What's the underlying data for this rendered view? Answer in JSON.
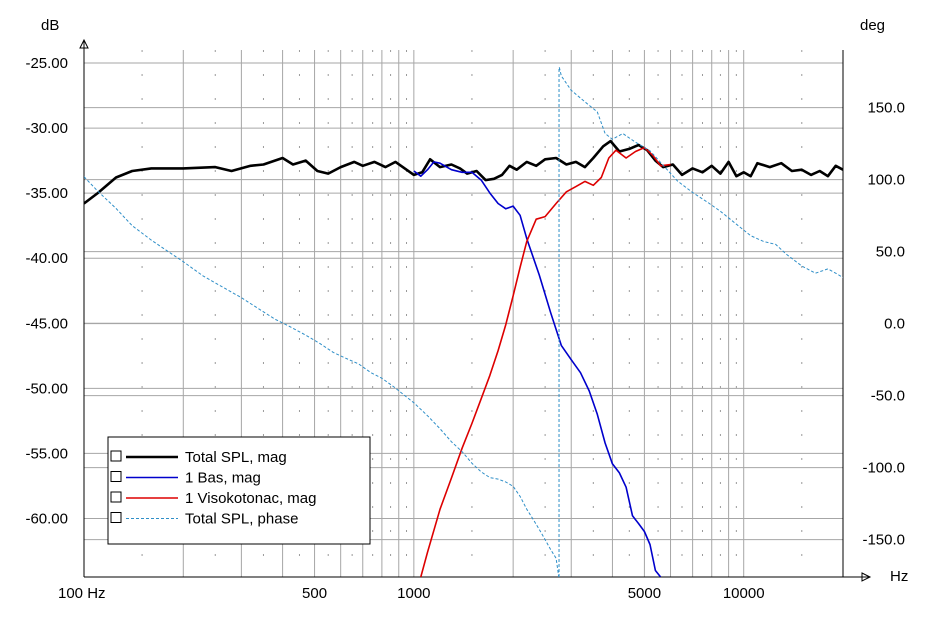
{
  "chart_data": {
    "type": "line",
    "title": "",
    "x_unit": "Hz",
    "y_left_unit": "dB",
    "y_right_unit": "deg",
    "x_scale": "log",
    "xlim": [
      100,
      20000
    ],
    "ylim_left": [
      -64.5,
      -24
    ],
    "ylim_right": [
      -176,
      190
    ],
    "x_ticks": [
      {
        "value": 100,
        "label": "100 Hz"
      },
      {
        "value": 500,
        "label": "500"
      },
      {
        "value": 1000,
        "label": "1000"
      },
      {
        "value": 5000,
        "label": "5000"
      },
      {
        "value": 10000,
        "label": "10000"
      }
    ],
    "y_left_ticks": [
      {
        "value": -25,
        "label": "-25.00"
      },
      {
        "value": -30,
        "label": "-30.00"
      },
      {
        "value": -35,
        "label": "-35.00"
      },
      {
        "value": -40,
        "label": "-40.00"
      },
      {
        "value": -45,
        "label": "-45.00"
      },
      {
        "value": -50,
        "label": "-50.00"
      },
      {
        "value": -55,
        "label": "-55.00"
      },
      {
        "value": -60,
        "label": "-60.00"
      }
    ],
    "y_right_ticks": [
      {
        "value": 150,
        "label": "150.0"
      },
      {
        "value": 100,
        "label": "100.0"
      },
      {
        "value": 50,
        "label": "50.0"
      },
      {
        "value": 0,
        "label": "0.0"
      },
      {
        "value": -50,
        "label": "-50.0"
      },
      {
        "value": -100,
        "label": "-100.0"
      },
      {
        "value": -150,
        "label": "-150.0"
      }
    ],
    "grid": true,
    "legend_position": "bottom-left",
    "series": [
      {
        "name": "Total SPL, mag",
        "axis": "left",
        "color": "#000000",
        "style": "solid-bold",
        "points": [
          [
            100,
            -35.8
          ],
          [
            110,
            -35.0
          ],
          [
            125,
            -33.8
          ],
          [
            140,
            -33.3
          ],
          [
            160,
            -33.1
          ],
          [
            200,
            -33.1
          ],
          [
            250,
            -33.0
          ],
          [
            280,
            -33.3
          ],
          [
            320,
            -32.9
          ],
          [
            350,
            -32.8
          ],
          [
            400,
            -32.3
          ],
          [
            430,
            -32.8
          ],
          [
            470,
            -32.5
          ],
          [
            510,
            -33.3
          ],
          [
            550,
            -33.5
          ],
          [
            600,
            -33.0
          ],
          [
            660,
            -32.6
          ],
          [
            700,
            -32.9
          ],
          [
            760,
            -32.6
          ],
          [
            820,
            -33.0
          ],
          [
            880,
            -32.6
          ],
          [
            950,
            -33.2
          ],
          [
            1000,
            -33.6
          ],
          [
            1060,
            -33.4
          ],
          [
            1120,
            -32.4
          ],
          [
            1200,
            -33.0
          ],
          [
            1300,
            -32.8
          ],
          [
            1380,
            -33.1
          ],
          [
            1450,
            -33.5
          ],
          [
            1550,
            -33.3
          ],
          [
            1650,
            -34.0
          ],
          [
            1750,
            -33.9
          ],
          [
            1850,
            -33.6
          ],
          [
            1950,
            -32.9
          ],
          [
            2050,
            -33.2
          ],
          [
            2200,
            -32.6
          ],
          [
            2350,
            -32.9
          ],
          [
            2500,
            -32.4
          ],
          [
            2700,
            -32.3
          ],
          [
            2900,
            -32.8
          ],
          [
            3100,
            -32.6
          ],
          [
            3300,
            -33.0
          ],
          [
            3500,
            -32.3
          ],
          [
            3750,
            -31.4
          ],
          [
            3950,
            -31.0
          ],
          [
            4200,
            -31.8
          ],
          [
            4500,
            -31.6
          ],
          [
            4800,
            -31.3
          ],
          [
            5100,
            -31.7
          ],
          [
            5400,
            -32.5
          ],
          [
            5700,
            -33.0
          ],
          [
            6100,
            -32.8
          ],
          [
            6500,
            -33.6
          ],
          [
            7000,
            -33.1
          ],
          [
            7500,
            -33.4
          ],
          [
            8000,
            -32.9
          ],
          [
            8500,
            -33.5
          ],
          [
            9000,
            -32.6
          ],
          [
            9500,
            -33.7
          ],
          [
            10000,
            -33.4
          ],
          [
            10500,
            -33.7
          ],
          [
            11000,
            -32.7
          ],
          [
            12000,
            -33.0
          ],
          [
            13000,
            -32.7
          ],
          [
            14000,
            -33.3
          ],
          [
            15000,
            -33.2
          ],
          [
            16000,
            -33.6
          ],
          [
            17000,
            -33.3
          ],
          [
            18000,
            -33.7
          ],
          [
            19000,
            -32.9
          ],
          [
            20000,
            -33.2
          ]
        ]
      },
      {
        "name": "1 Bas, mag",
        "axis": "left",
        "color": "#0000cc",
        "style": "solid",
        "points": [
          [
            1000,
            -33.3
          ],
          [
            1050,
            -33.7
          ],
          [
            1100,
            -33.2
          ],
          [
            1150,
            -32.6
          ],
          [
            1200,
            -32.7
          ],
          [
            1300,
            -33.2
          ],
          [
            1400,
            -33.4
          ],
          [
            1500,
            -33.4
          ],
          [
            1600,
            -34.0
          ],
          [
            1700,
            -35.0
          ],
          [
            1800,
            -35.8
          ],
          [
            1900,
            -36.2
          ],
          [
            2000,
            -36.0
          ],
          [
            2100,
            -36.7
          ],
          [
            2200,
            -38.5
          ],
          [
            2400,
            -41.3
          ],
          [
            2600,
            -44.2
          ],
          [
            2800,
            -46.7
          ],
          [
            3000,
            -47.8
          ],
          [
            3200,
            -48.8
          ],
          [
            3400,
            -50.2
          ],
          [
            3600,
            -52.0
          ],
          [
            3800,
            -54.2
          ],
          [
            4000,
            -55.8
          ],
          [
            4200,
            -56.5
          ],
          [
            4400,
            -57.6
          ],
          [
            4600,
            -59.8
          ],
          [
            4800,
            -60.4
          ],
          [
            5000,
            -61.0
          ],
          [
            5200,
            -62.0
          ],
          [
            5400,
            -64.0
          ],
          [
            5600,
            -64.5
          ]
        ]
      },
      {
        "name": "1 Visokotonac, mag",
        "axis": "left",
        "color": "#dd0000",
        "style": "solid",
        "points": [
          [
            1050,
            -64.5
          ],
          [
            1100,
            -62.6
          ],
          [
            1200,
            -59.3
          ],
          [
            1300,
            -56.9
          ],
          [
            1400,
            -54.6
          ],
          [
            1500,
            -52.7
          ],
          [
            1600,
            -50.8
          ],
          [
            1700,
            -49.0
          ],
          [
            1800,
            -47.1
          ],
          [
            1900,
            -45.1
          ],
          [
            2000,
            -42.9
          ],
          [
            2100,
            -40.7
          ],
          [
            2200,
            -38.7
          ],
          [
            2350,
            -37.0
          ],
          [
            2500,
            -36.8
          ],
          [
            2700,
            -35.8
          ],
          [
            2900,
            -34.9
          ],
          [
            3100,
            -34.5
          ],
          [
            3300,
            -34.1
          ],
          [
            3500,
            -34.4
          ],
          [
            3700,
            -33.8
          ],
          [
            3900,
            -32.3
          ],
          [
            4100,
            -31.7
          ],
          [
            4400,
            -32.3
          ],
          [
            4700,
            -31.8
          ],
          [
            5000,
            -31.5
          ],
          [
            5300,
            -32.1
          ],
          [
            5600,
            -32.9
          ],
          [
            6000,
            -32.8
          ]
        ]
      },
      {
        "name": "Total SPL, phase",
        "axis": "right",
        "color": "#2f8fc8",
        "style": "dashed",
        "points": [
          [
            100,
            102
          ],
          [
            110,
            92
          ],
          [
            125,
            80
          ],
          [
            140,
            68
          ],
          [
            160,
            58
          ],
          [
            180,
            50
          ],
          [
            200,
            43
          ],
          [
            230,
            33
          ],
          [
            260,
            26
          ],
          [
            300,
            18
          ],
          [
            340,
            10
          ],
          [
            380,
            3
          ],
          [
            420,
            -2
          ],
          [
            470,
            -8
          ],
          [
            520,
            -14
          ],
          [
            570,
            -20
          ],
          [
            620,
            -24
          ],
          [
            680,
            -28
          ],
          [
            740,
            -34
          ],
          [
            800,
            -38
          ],
          [
            870,
            -44
          ],
          [
            950,
            -51
          ],
          [
            1000,
            -55
          ],
          [
            1100,
            -64
          ],
          [
            1200,
            -73
          ],
          [
            1300,
            -82
          ],
          [
            1400,
            -89
          ],
          [
            1500,
            -97
          ],
          [
            1600,
            -103
          ],
          [
            1700,
            -107
          ],
          [
            1800,
            -108
          ],
          [
            1900,
            -110
          ],
          [
            2000,
            -113
          ],
          [
            2100,
            -120
          ],
          [
            2200,
            -129
          ],
          [
            2300,
            -136
          ],
          [
            2400,
            -143
          ],
          [
            2500,
            -150
          ],
          [
            2600,
            -157
          ],
          [
            2700,
            -163
          ],
          [
            2750,
            -176
          ],
          [
            2760,
            178
          ],
          [
            2800,
            172
          ],
          [
            3000,
            162
          ],
          [
            3300,
            154
          ],
          [
            3600,
            147
          ],
          [
            3800,
            132
          ],
          [
            4000,
            128
          ],
          [
            4300,
            132
          ],
          [
            4700,
            126
          ],
          [
            5200,
            120
          ],
          [
            5800,
            108
          ],
          [
            6300,
            99
          ],
          [
            7000,
            91
          ],
          [
            7800,
            84
          ],
          [
            8500,
            78
          ],
          [
            9500,
            69
          ],
          [
            10500,
            61
          ],
          [
            11500,
            57
          ],
          [
            12500,
            55
          ],
          [
            13500,
            48
          ],
          [
            15000,
            40
          ],
          [
            16500,
            35
          ],
          [
            18000,
            38
          ],
          [
            19000,
            35
          ],
          [
            20000,
            32
          ]
        ]
      }
    ]
  }
}
